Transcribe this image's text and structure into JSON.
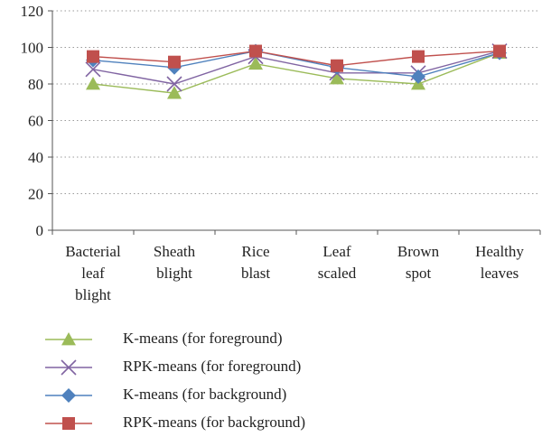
{
  "chart_data": {
    "type": "line",
    "title": "",
    "xlabel": "",
    "ylabel": "",
    "ylim": [
      0,
      120
    ],
    "yticks": [
      0,
      20,
      40,
      60,
      80,
      100,
      120
    ],
    "grid": "horizontal-dotted",
    "legend_placement": "bottom",
    "categories": [
      [
        "Bacterial",
        "leaf",
        "blight"
      ],
      [
        "Sheath",
        "blight"
      ],
      [
        "Rice",
        "blast"
      ],
      [
        "Leaf",
        "scaled"
      ],
      [
        "Brown",
        "spot"
      ],
      [
        "Healthy",
        "leaves"
      ]
    ],
    "series": [
      {
        "name": "K-means (for foreground)",
        "marker": "triangle",
        "color": "#9bbb59",
        "values": [
          80,
          75,
          91,
          83,
          80,
          97
        ]
      },
      {
        "name": "RPK-means (for foreground)",
        "marker": "x",
        "color": "#8064a2",
        "values": [
          88,
          80,
          95,
          86,
          86,
          98
        ]
      },
      {
        "name": "K-means (for background)",
        "marker": "diamond",
        "color": "#4f81bd",
        "values": [
          93,
          89,
          98,
          89,
          84,
          97
        ]
      },
      {
        "name": "RPK-means (for background)",
        "marker": "square",
        "color": "#c0504d",
        "values": [
          95,
          92,
          98,
          90,
          95,
          98
        ]
      }
    ]
  }
}
